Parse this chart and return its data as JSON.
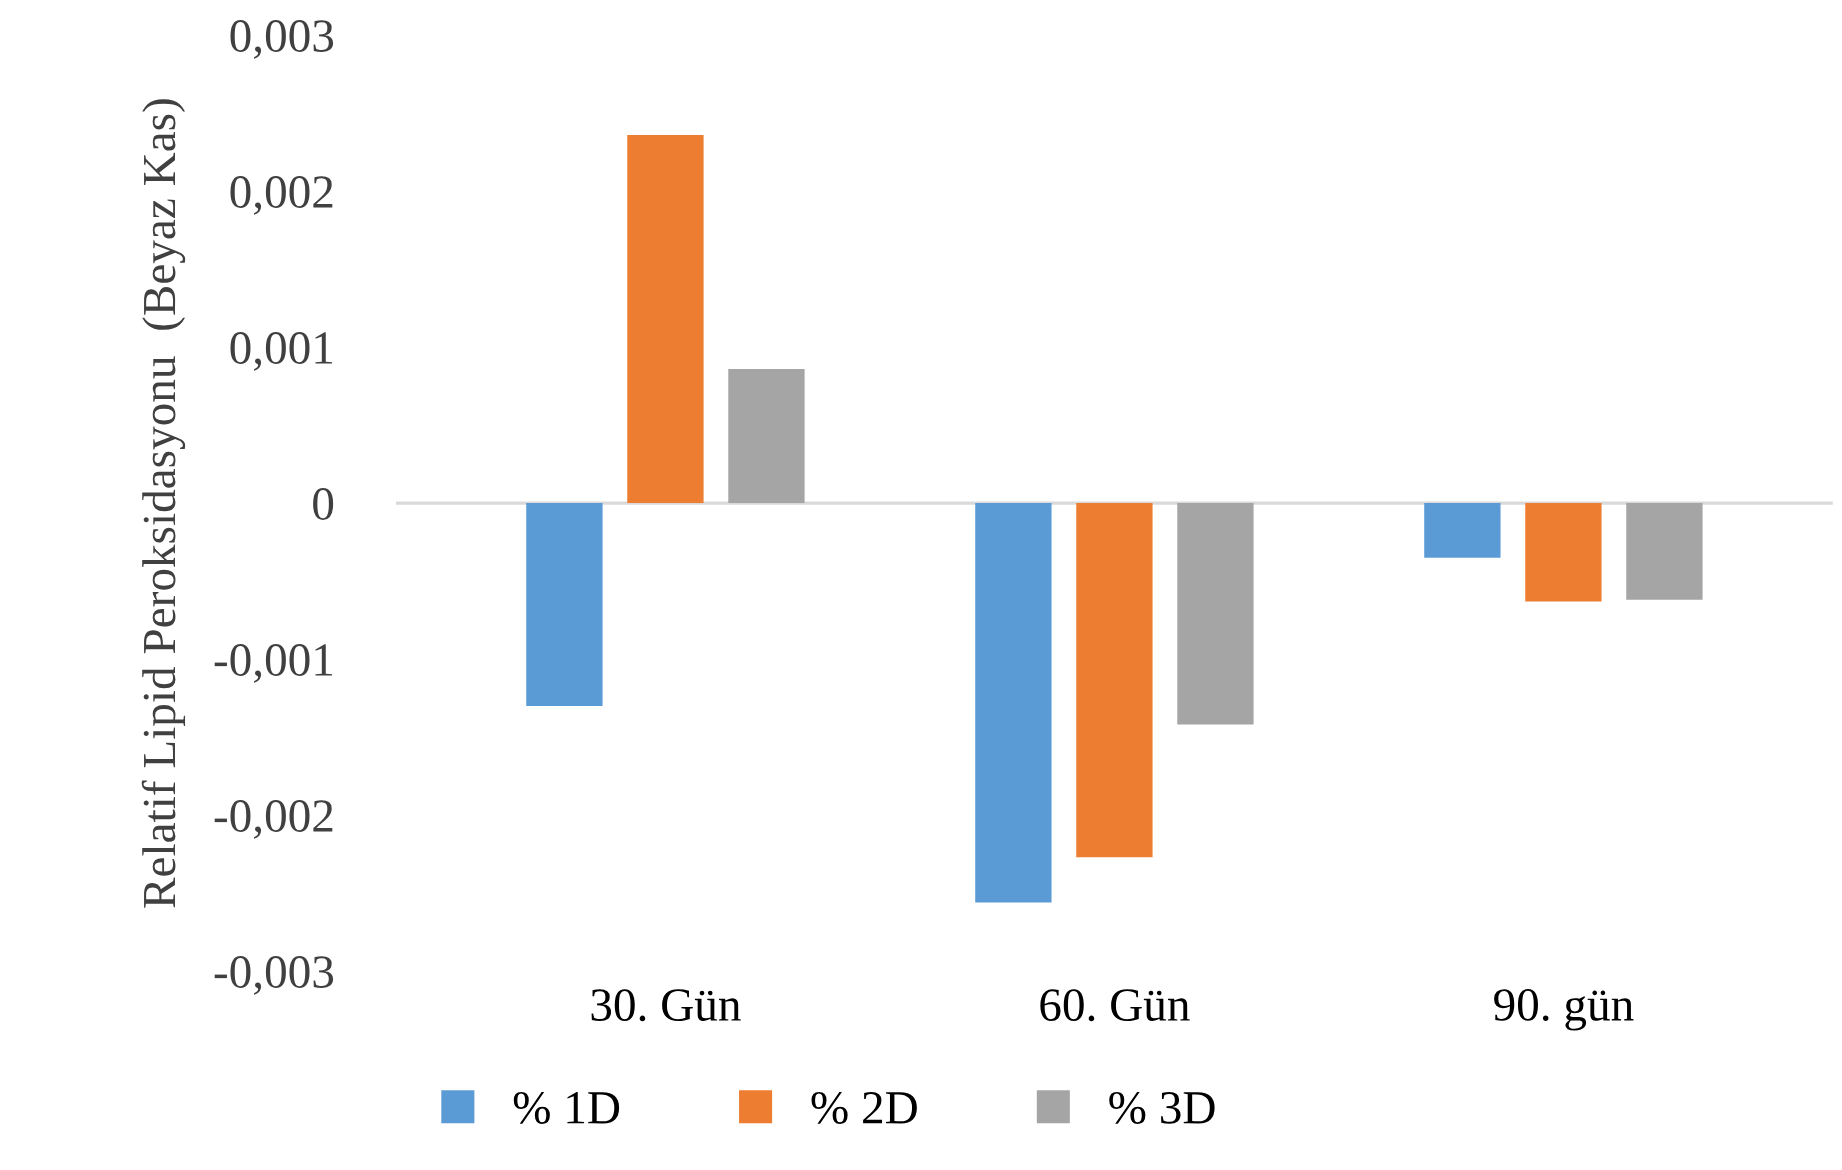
{
  "chart_data": {
    "type": "bar",
    "ylabel": "Relatif Lipid Peroksidasyonu  (Beyaz Kas)",
    "categories": [
      "30. Gün",
      "60. Gün",
      "90. gün"
    ],
    "series": [
      {
        "name": "% 1D",
        "color": "#5b9bd5",
        "values": [
          -0.0013,
          -0.00256,
          -0.00035
        ]
      },
      {
        "name": "% 2D",
        "color": "#ed7d31",
        "values": [
          0.00236,
          -0.00227,
          -0.00063
        ]
      },
      {
        "name": "% 3D",
        "color": "#a5a5a5",
        "values": [
          0.00086,
          -0.00142,
          -0.00062
        ]
      }
    ],
    "ylim": [
      -0.003,
      0.003
    ],
    "yticks": [
      {
        "value": 0.003,
        "label": "0,003"
      },
      {
        "value": 0.002,
        "label": "0,002"
      },
      {
        "value": 0.001,
        "label": "0,001"
      },
      0,
      {
        "value": -0.001,
        "label": "-0,001"
      },
      {
        "value": -0.002,
        "label": "-0,002"
      },
      {
        "value": -0.003,
        "label": "-0,003"
      }
    ],
    "ref_lines": [
      {
        "axis": "y",
        "value": 0,
        "color": "#d9d9d9"
      }
    ],
    "grid": false,
    "legend": "bottom"
  }
}
